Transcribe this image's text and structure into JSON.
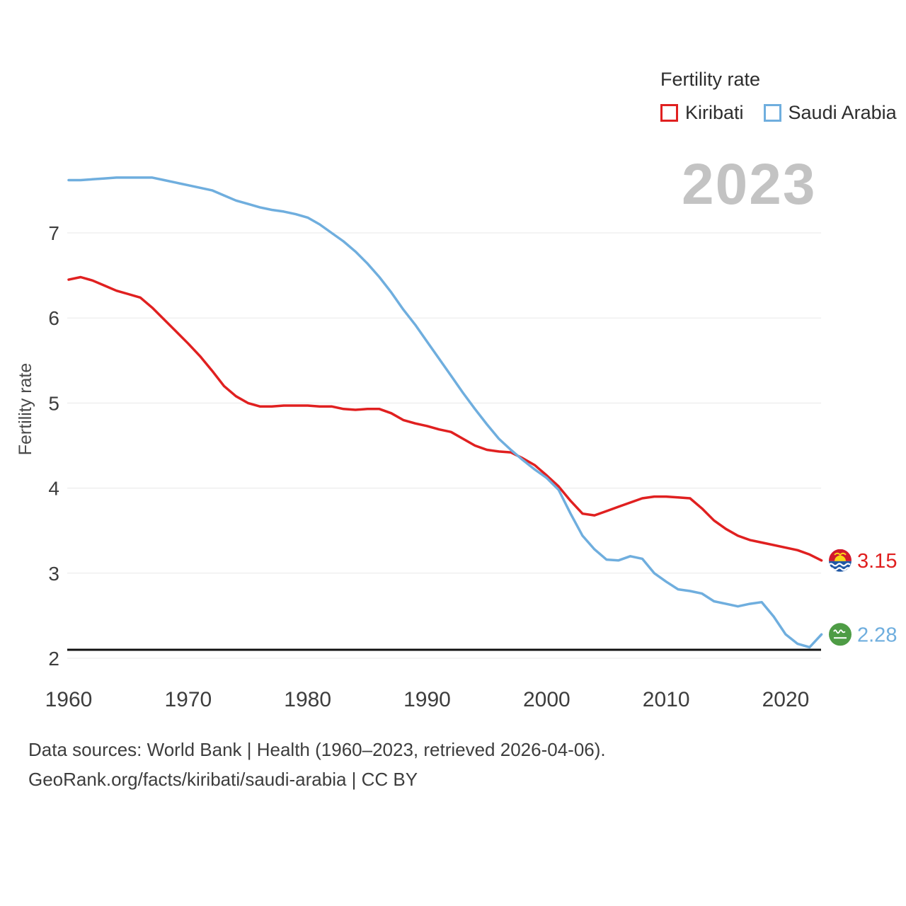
{
  "legend": {
    "title": "Fertility rate",
    "items": [
      {
        "label": "Kiribati",
        "color": "#e02020"
      },
      {
        "label": "Saudi Arabia",
        "color": "#6faede"
      }
    ]
  },
  "watermark": "2023",
  "y_axis_label": "Fertility rate",
  "end_labels": {
    "kiribati": "3.15",
    "saudi_arabia": "2.28"
  },
  "footer": {
    "line1": "Data sources: World Bank | Health (1960–2023, retrieved 2026-04-06).",
    "line2": "GeoRank.org/facts/kiribati/saudi-arabia | CC BY"
  },
  "chart_data": {
    "type": "line",
    "title": "Fertility rate",
    "xlabel": "",
    "ylabel": "Fertility rate",
    "ylim": [
      2,
      7.9
    ],
    "grid": "horizontal",
    "legend_position": "top-right",
    "x_ticks": [
      1960,
      1970,
      1980,
      1990,
      2000,
      2010,
      2020
    ],
    "y_ticks": [
      2,
      3,
      4,
      5,
      6,
      7
    ],
    "replacement_level": 2.1,
    "years": [
      1960,
      1961,
      1962,
      1963,
      1964,
      1965,
      1966,
      1967,
      1968,
      1969,
      1970,
      1971,
      1972,
      1973,
      1974,
      1975,
      1976,
      1977,
      1978,
      1979,
      1980,
      1981,
      1982,
      1983,
      1984,
      1985,
      1986,
      1987,
      1988,
      1989,
      1990,
      1991,
      1992,
      1993,
      1994,
      1995,
      1996,
      1997,
      1998,
      1999,
      2000,
      2001,
      2002,
      2003,
      2004,
      2005,
      2006,
      2007,
      2008,
      2009,
      2010,
      2011,
      2012,
      2013,
      2014,
      2015,
      2016,
      2017,
      2018,
      2019,
      2020,
      2021,
      2022,
      2023
    ],
    "series": [
      {
        "id": "kiribati",
        "name": "Kiribati",
        "color": "#e02020",
        "end_value": 3.15,
        "values": [
          6.45,
          6.48,
          6.44,
          6.38,
          6.32,
          6.28,
          6.24,
          6.12,
          5.98,
          5.84,
          5.7,
          5.55,
          5.38,
          5.2,
          5.08,
          5.0,
          4.96,
          4.96,
          4.97,
          4.97,
          4.97,
          4.96,
          4.96,
          4.93,
          4.92,
          4.93,
          4.93,
          4.88,
          4.8,
          4.76,
          4.73,
          4.69,
          4.66,
          4.58,
          4.5,
          4.45,
          4.43,
          4.42,
          4.35,
          4.27,
          4.15,
          4.02,
          3.85,
          3.7,
          3.68,
          3.73,
          3.78,
          3.83,
          3.88,
          3.9,
          3.9,
          3.89,
          3.88,
          3.76,
          3.62,
          3.52,
          3.44,
          3.39,
          3.36,
          3.33,
          3.3,
          3.27,
          3.22,
          3.15
        ]
      },
      {
        "id": "saudi-arabia",
        "name": "Saudi Arabia",
        "color": "#6faede",
        "end_value": 2.28,
        "values": [
          7.62,
          7.62,
          7.63,
          7.64,
          7.65,
          7.65,
          7.65,
          7.65,
          7.62,
          7.59,
          7.56,
          7.53,
          7.5,
          7.44,
          7.38,
          7.34,
          7.3,
          7.27,
          7.25,
          7.22,
          7.18,
          7.1,
          7.0,
          6.9,
          6.78,
          6.64,
          6.48,
          6.3,
          6.1,
          5.92,
          5.72,
          5.52,
          5.32,
          5.12,
          4.93,
          4.75,
          4.58,
          4.45,
          4.33,
          4.22,
          4.12,
          3.98,
          3.7,
          3.44,
          3.28,
          3.16,
          3.15,
          3.2,
          3.17,
          3.0,
          2.9,
          2.81,
          2.79,
          2.76,
          2.67,
          2.64,
          2.61,
          2.64,
          2.66,
          2.49,
          2.28,
          2.17,
          2.13,
          2.28
        ]
      }
    ]
  }
}
